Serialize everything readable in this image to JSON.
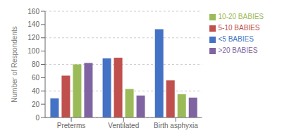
{
  "chart_data": {
    "type": "bar",
    "categories": [
      "Preterms",
      "Ventilated",
      "Birth asphyxia"
    ],
    "series": [
      {
        "name": "<5 BABIES",
        "color": "#4472C4",
        "values": [
          29,
          89,
          133
        ]
      },
      {
        "name": "5-10 BABIES",
        "color": "#C0504D",
        "values": [
          63,
          90,
          56
        ]
      },
      {
        "name": "10-20 BABIES",
        "color": "#9BBB59",
        "values": [
          80,
          43,
          35
        ]
      },
      {
        "name": ">20 BABIES",
        "color": "#8064A2",
        "values": [
          82,
          33,
          30
        ]
      }
    ],
    "ylabel": "Number of Respondents",
    "ylim": [
      0,
      160
    ],
    "yticks": [
      0,
      20,
      40,
      60,
      80,
      100,
      120,
      140,
      160
    ],
    "grid": true,
    "legend": "right"
  }
}
